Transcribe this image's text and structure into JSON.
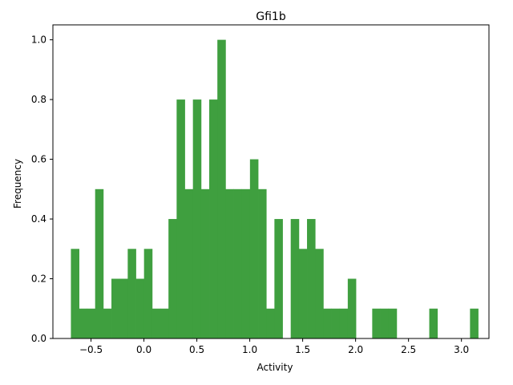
{
  "chart_data": {
    "type": "bar",
    "title": "Gfi1b",
    "xlabel": "Activity",
    "ylabel": "Frequency",
    "xlim": [
      -0.86,
      3.26
    ],
    "ylim": [
      0,
      1.05
    ],
    "bin_width": 0.0769,
    "color": "#3f9f3f",
    "xticks": [
      "−0.5",
      "0.0",
      "0.5",
      "1.0",
      "1.5",
      "2.0",
      "2.5",
      "3.0"
    ],
    "xtick_values": [
      -0.5,
      0.0,
      0.5,
      1.0,
      1.5,
      2.0,
      2.5,
      3.0
    ],
    "yticks": [
      "0.0",
      "0.2",
      "0.4",
      "0.6",
      "0.8",
      "1.0"
    ],
    "ytick_values": [
      0.0,
      0.2,
      0.4,
      0.6,
      0.8,
      1.0
    ],
    "bins": [
      {
        "x": -0.69,
        "value": 0.3
      },
      {
        "x": -0.615,
        "value": 0.1
      },
      {
        "x": -0.538,
        "value": 0.1
      },
      {
        "x": -0.461,
        "value": 0.5
      },
      {
        "x": -0.384,
        "value": 0.1
      },
      {
        "x": -0.307,
        "value": 0.2
      },
      {
        "x": -0.23,
        "value": 0.2
      },
      {
        "x": -0.153,
        "value": 0.3
      },
      {
        "x": -0.076,
        "value": 0.2
      },
      {
        "x": 0.001,
        "value": 0.3
      },
      {
        "x": 0.078,
        "value": 0.1
      },
      {
        "x": 0.155,
        "value": 0.1
      },
      {
        "x": 0.232,
        "value": 0.4
      },
      {
        "x": 0.309,
        "value": 0.8
      },
      {
        "x": 0.386,
        "value": 0.5
      },
      {
        "x": 0.463,
        "value": 0.8
      },
      {
        "x": 0.54,
        "value": 0.5
      },
      {
        "x": 0.617,
        "value": 0.8
      },
      {
        "x": 0.694,
        "value": 1.0
      },
      {
        "x": 0.771,
        "value": 0.5
      },
      {
        "x": 0.848,
        "value": 0.5
      },
      {
        "x": 0.925,
        "value": 0.5
      },
      {
        "x": 1.002,
        "value": 0.6
      },
      {
        "x": 1.079,
        "value": 0.5
      },
      {
        "x": 1.156,
        "value": 0.1
      },
      {
        "x": 1.233,
        "value": 0.4
      },
      {
        "x": 1.387,
        "value": 0.4
      },
      {
        "x": 1.464,
        "value": 0.3
      },
      {
        "x": 1.541,
        "value": 0.4
      },
      {
        "x": 1.618,
        "value": 0.3
      },
      {
        "x": 1.695,
        "value": 0.1
      },
      {
        "x": 1.772,
        "value": 0.1
      },
      {
        "x": 1.849,
        "value": 0.1
      },
      {
        "x": 1.926,
        "value": 0.2
      },
      {
        "x": 2.157,
        "value": 0.1
      },
      {
        "x": 2.234,
        "value": 0.1
      },
      {
        "x": 2.311,
        "value": 0.1
      },
      {
        "x": 2.696,
        "value": 0.1
      },
      {
        "x": 3.081,
        "value": 0.1
      }
    ]
  }
}
